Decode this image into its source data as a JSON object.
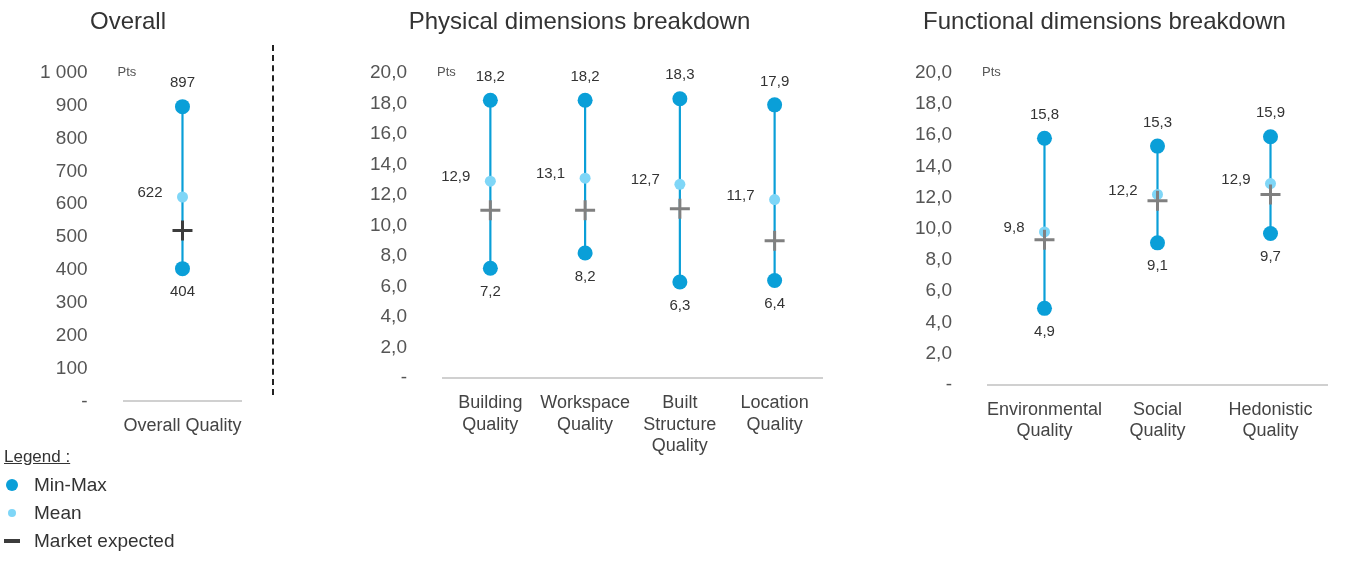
{
  "chart_data": [
    {
      "type": "scatter",
      "title": "Overall",
      "ylabel": "Pts",
      "categories": [
        "Overall Quality"
      ],
      "ylim": [
        0,
        1000
      ],
      "yticks": [
        {
          "value": 0,
          "label": "-"
        },
        100,
        200,
        300,
        400,
        500,
        600,
        700,
        800,
        900,
        {
          "value": 1000,
          "label": "1 000"
        }
      ],
      "grid": false,
      "legend": "bottom left",
      "legend_title": "Legend :",
      "series": [
        {
          "name": "Min-Max",
          "color": "#0a9fd8",
          "marker": "circle",
          "values": [
            897
          ],
          "value_labels": [
            "897"
          ]
        },
        {
          "color": "#0a9fd8",
          "marker": "circle",
          "values": [
            404
          ],
          "value_labels": [
            "404"
          ]
        },
        {
          "name": "Mean",
          "color": "#7fd6f7",
          "marker": "circle",
          "values": [
            622
          ],
          "value_labels": [
            "622"
          ]
        },
        {
          "name": "Market expected",
          "color": "#3c3c3c",
          "marker": "cross",
          "values": [
            520
          ]
        }
      ]
    },
    {
      "type": "scatter",
      "title": "Physical dimensions breakdown",
      "ylabel": "Pts",
      "categories": [
        "Building Quality",
        "Workspace Quality",
        "Built Structure Quality",
        "Location Quality"
      ],
      "ylim": [
        0,
        20
      ],
      "yticks": [
        {
          "value": 0,
          "label": "-"
        },
        {
          "value": 2,
          "label": "2,0"
        },
        {
          "value": 4,
          "label": "4,0"
        },
        {
          "value": 6,
          "label": "6,0"
        },
        {
          "value": 8,
          "label": "8,0"
        },
        {
          "value": 10,
          "label": "10,0"
        },
        {
          "value": 12,
          "label": "12,0"
        },
        {
          "value": 14,
          "label": "14,0"
        },
        {
          "value": 16,
          "label": "16,0"
        },
        {
          "value": 18,
          "label": "18,0"
        },
        {
          "value": 20,
          "label": "20,0"
        }
      ],
      "grid": false,
      "series": [
        {
          "color": "#0a9fd8",
          "marker": "circle",
          "values": [
            18.2,
            18.2,
            18.3,
            17.9
          ],
          "value_labels": [
            "18,2",
            "18,2",
            "18,3",
            "17,9"
          ]
        },
        {
          "color": "#0a9fd8",
          "marker": "circle",
          "values": [
            7.2,
            8.2,
            6.3,
            6.4
          ],
          "value_labels": [
            "7,2",
            "8,2",
            "6,3",
            "6,4"
          ]
        },
        {
          "color": "#7fd6f7",
          "marker": "circle",
          "values": [
            12.9,
            13.1,
            12.7,
            11.7
          ],
          "value_labels": [
            "12,9",
            "13,1",
            "12,7",
            "11,7"
          ]
        },
        {
          "color": "#808080",
          "marker": "cross",
          "values": [
            11.0,
            11.0,
            11.1,
            9.0
          ]
        }
      ]
    },
    {
      "type": "scatter",
      "title": "Functional dimensions breakdown",
      "ylabel": "Pts",
      "categories": [
        "Environmental Quality",
        "Social Quality",
        "Hedonistic Quality"
      ],
      "ylim": [
        0,
        20
      ],
      "yticks": [
        {
          "value": 0,
          "label": "-"
        },
        {
          "value": 2,
          "label": "2,0"
        },
        {
          "value": 4,
          "label": "4,0"
        },
        {
          "value": 6,
          "label": "6,0"
        },
        {
          "value": 8,
          "label": "8,0"
        },
        {
          "value": 10,
          "label": "10,0"
        },
        {
          "value": 12,
          "label": "12,0"
        },
        {
          "value": 14,
          "label": "14,0"
        },
        {
          "value": 16,
          "label": "16,0"
        },
        {
          "value": 18,
          "label": "18,0"
        },
        {
          "value": 20,
          "label": "20,0"
        }
      ],
      "grid": false,
      "series": [
        {
          "color": "#0a9fd8",
          "marker": "circle",
          "values": [
            15.8,
            15.3,
            15.9
          ],
          "value_labels": [
            "15,8",
            "15,3",
            "15,9"
          ]
        },
        {
          "color": "#0a9fd8",
          "marker": "circle",
          "values": [
            4.9,
            9.1,
            9.7
          ],
          "value_labels": [
            "4,9",
            "9,1",
            "9,7"
          ]
        },
        {
          "color": "#7fd6f7",
          "marker": "circle",
          "values": [
            9.8,
            12.2,
            12.9
          ],
          "value_labels": [
            "9,8",
            "12,2",
            "12,9"
          ]
        },
        {
          "color": "#808080",
          "marker": "cross",
          "values": [
            9.3,
            11.8,
            12.2
          ]
        }
      ]
    }
  ]
}
